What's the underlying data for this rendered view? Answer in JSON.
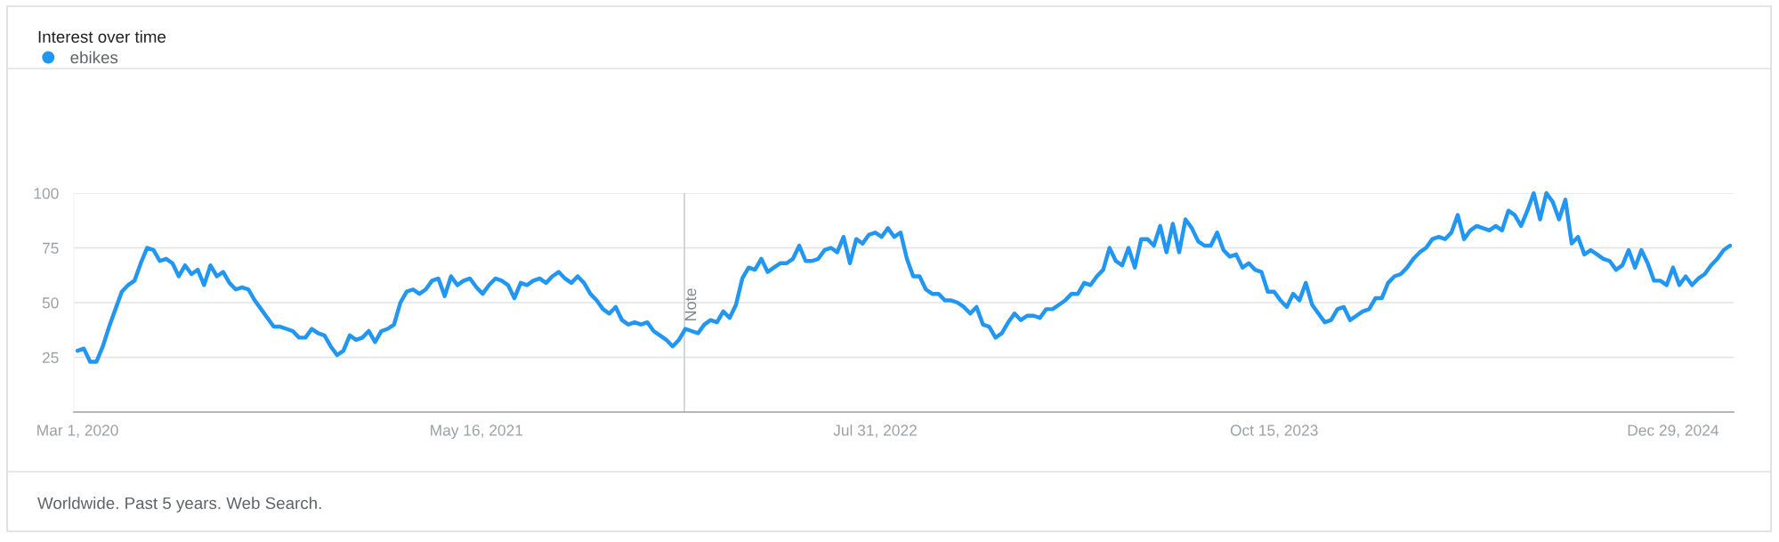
{
  "chart_data": {
    "type": "line",
    "title": "Interest over time",
    "annotations": [
      "Worldwide. Past 5 years. Web Search."
    ],
    "x": [
      "2020-03-01",
      "2020-03-08",
      "2020-03-15",
      "2020-03-22",
      "2020-03-29",
      "2020-04-05",
      "2020-04-12",
      "2020-04-19",
      "2020-04-26",
      "2020-05-03",
      "2020-05-10",
      "2020-05-17",
      "2020-05-24",
      "2020-05-31",
      "2020-06-07",
      "2020-06-14",
      "2020-06-21",
      "2020-06-28",
      "2020-07-05",
      "2020-07-12",
      "2020-07-19",
      "2020-07-26",
      "2020-08-02",
      "2020-08-09",
      "2020-08-16",
      "2020-08-23",
      "2020-08-30",
      "2020-09-06",
      "2020-09-13",
      "2020-09-20",
      "2020-09-27",
      "2020-10-04",
      "2020-10-11",
      "2020-10-18",
      "2020-10-25",
      "2020-11-01",
      "2020-11-08",
      "2020-11-15",
      "2020-11-22",
      "2020-11-29",
      "2020-12-06",
      "2020-12-13",
      "2020-12-20",
      "2020-12-27",
      "2021-01-03",
      "2021-01-10",
      "2021-01-17",
      "2021-01-24",
      "2021-01-31",
      "2021-02-07",
      "2021-02-14",
      "2021-02-21",
      "2021-02-28",
      "2021-03-07",
      "2021-03-14",
      "2021-03-21",
      "2021-03-28",
      "2021-04-04",
      "2021-04-11",
      "2021-04-18",
      "2021-04-25",
      "2021-05-02",
      "2021-05-09",
      "2021-05-16",
      "2021-05-23",
      "2021-05-30",
      "2021-06-06",
      "2021-06-13",
      "2021-06-20",
      "2021-06-27",
      "2021-07-04",
      "2021-07-11",
      "2021-07-18",
      "2021-07-25",
      "2021-08-01",
      "2021-08-08",
      "2021-08-15",
      "2021-08-22",
      "2021-08-29",
      "2021-09-05",
      "2021-09-12",
      "2021-09-19",
      "2021-09-26",
      "2021-10-03",
      "2021-10-10",
      "2021-10-17",
      "2021-10-24",
      "2021-10-31",
      "2021-11-07",
      "2021-11-14",
      "2021-11-21",
      "2021-11-28",
      "2021-12-05",
      "2021-12-12",
      "2021-12-19",
      "2021-12-26",
      "2022-01-02",
      "2022-01-09",
      "2022-01-16",
      "2022-01-23",
      "2022-01-30",
      "2022-02-06",
      "2022-02-13",
      "2022-02-20",
      "2022-02-27",
      "2022-03-06",
      "2022-03-13",
      "2022-03-20",
      "2022-03-27",
      "2022-04-03",
      "2022-04-10",
      "2022-04-17",
      "2022-04-24",
      "2022-05-01",
      "2022-05-08",
      "2022-05-15",
      "2022-05-22",
      "2022-05-29",
      "2022-06-05",
      "2022-06-12",
      "2022-06-19",
      "2022-06-26",
      "2022-07-03",
      "2022-07-10",
      "2022-07-17",
      "2022-07-24",
      "2022-07-31",
      "2022-08-07",
      "2022-08-14",
      "2022-08-21",
      "2022-08-28",
      "2022-09-04",
      "2022-09-11",
      "2022-09-18",
      "2022-09-25",
      "2022-10-02",
      "2022-10-09",
      "2022-10-16",
      "2022-10-23",
      "2022-10-30",
      "2022-11-06",
      "2022-11-13",
      "2022-11-20",
      "2022-11-27",
      "2022-12-04",
      "2022-12-11",
      "2022-12-18",
      "2022-12-25",
      "2023-01-01",
      "2023-01-08",
      "2023-01-15",
      "2023-01-22",
      "2023-01-29",
      "2023-02-05",
      "2023-02-12",
      "2023-02-19",
      "2023-02-26",
      "2023-03-05",
      "2023-03-12",
      "2023-03-19",
      "2023-03-26",
      "2023-04-02",
      "2023-04-09",
      "2023-04-16",
      "2023-04-23",
      "2023-04-30",
      "2023-05-07",
      "2023-05-14",
      "2023-05-21",
      "2023-05-28",
      "2023-06-04",
      "2023-06-11",
      "2023-06-18",
      "2023-06-25",
      "2023-07-02",
      "2023-07-09",
      "2023-07-16",
      "2023-07-23",
      "2023-07-30",
      "2023-08-06",
      "2023-08-13",
      "2023-08-20",
      "2023-08-27",
      "2023-09-03",
      "2023-09-10",
      "2023-09-17",
      "2023-09-24",
      "2023-10-01",
      "2023-10-08",
      "2023-10-15",
      "2023-10-22",
      "2023-10-29",
      "2023-11-05",
      "2023-11-12",
      "2023-11-19",
      "2023-11-26",
      "2023-12-03",
      "2023-12-10",
      "2023-12-17",
      "2023-12-24",
      "2023-12-31",
      "2024-01-07",
      "2024-01-14",
      "2024-01-21",
      "2024-01-28",
      "2024-02-04",
      "2024-02-11",
      "2024-02-18",
      "2024-02-25",
      "2024-03-03",
      "2024-03-10",
      "2024-03-17",
      "2024-03-24",
      "2024-03-31",
      "2024-04-07",
      "2024-04-14",
      "2024-04-21",
      "2024-04-28",
      "2024-05-05",
      "2024-05-12",
      "2024-05-19",
      "2024-05-26",
      "2024-06-02",
      "2024-06-09",
      "2024-06-16",
      "2024-06-23",
      "2024-06-30",
      "2024-07-07",
      "2024-07-14",
      "2024-07-21",
      "2024-07-28",
      "2024-08-04",
      "2024-08-11",
      "2024-08-18",
      "2024-08-25",
      "2024-09-01",
      "2024-09-08",
      "2024-09-15",
      "2024-09-22",
      "2024-09-29",
      "2024-10-06",
      "2024-10-13",
      "2024-10-20",
      "2024-10-27",
      "2024-11-03",
      "2024-11-10",
      "2024-11-17",
      "2024-11-24",
      "2024-12-01",
      "2024-12-08",
      "2024-12-15",
      "2024-12-22",
      "2024-12-29",
      "2025-01-05",
      "2025-01-12",
      "2025-01-19",
      "2025-01-26",
      "2025-02-02",
      "2025-02-09",
      "2025-02-16",
      "2025-02-23",
      "2025-03-02"
    ],
    "series": [
      {
        "name": "ebikes",
        "color": "#2196f3",
        "values": [
          28,
          29,
          23,
          23,
          30,
          39,
          47,
          55,
          58,
          60,
          68,
          75,
          74,
          69,
          70,
          68,
          62,
          67,
          63,
          65,
          58,
          67,
          62,
          64,
          59,
          56,
          57,
          56,
          51,
          47,
          43,
          39,
          39,
          38,
          37,
          34,
          34,
          38,
          36,
          35,
          30,
          26,
          28,
          35,
          33,
          34,
          37,
          32,
          37,
          38,
          40,
          50,
          55,
          56,
          54,
          56,
          60,
          61,
          53,
          62,
          58,
          60,
          61,
          57,
          54,
          58,
          61,
          60,
          58,
          52,
          59,
          58,
          60,
          61,
          59,
          62,
          64,
          61,
          59,
          62,
          59,
          54,
          51,
          47,
          45,
          48,
          42,
          40,
          41,
          40,
          41,
          37,
          35,
          33,
          30,
          33,
          38,
          37,
          36,
          40,
          42,
          41,
          46,
          43,
          49,
          61,
          66,
          65,
          70,
          64,
          66,
          68,
          68,
          70,
          76,
          69,
          69,
          70,
          74,
          75,
          73,
          80,
          68,
          79,
          77,
          81,
          82,
          80,
          84,
          80,
          82,
          70,
          62,
          62,
          56,
          54,
          54,
          51,
          51,
          50,
          48,
          45,
          48,
          40,
          39,
          34,
          36,
          41,
          45,
          42,
          44,
          44,
          43,
          47,
          47,
          49,
          51,
          54,
          54,
          59,
          58,
          62,
          65,
          75,
          69,
          67,
          75,
          66,
          79,
          79,
          76,
          85,
          73,
          86,
          73,
          88,
          84,
          78,
          76,
          76,
          82,
          74,
          71,
          72,
          66,
          68,
          65,
          64,
          55,
          55,
          51,
          48,
          54,
          51,
          59,
          49,
          45,
          41,
          42,
          47,
          48,
          42,
          44,
          46,
          47,
          52,
          52,
          59,
          62,
          63,
          66,
          70,
          73,
          75,
          79,
          80,
          79,
          82,
          90,
          79,
          83,
          85,
          84,
          83,
          85,
          83,
          92,
          90,
          85,
          92,
          100,
          88,
          100,
          96,
          88,
          97,
          77,
          80,
          72,
          74,
          72,
          70,
          69,
          65,
          67,
          74,
          66,
          74,
          68,
          60,
          60,
          58,
          66,
          58,
          62,
          58,
          61,
          63,
          67,
          70,
          74,
          76
        ]
      }
    ],
    "xlim": [
      "2020-02-26",
      "2025-03-06"
    ],
    "xticks": [
      {
        "value": "2020-03-01",
        "label": "Mar 1, 2020"
      },
      {
        "value": "2021-05-16",
        "label": "May 16, 2021"
      },
      {
        "value": "2022-07-31",
        "label": "Jul 31, 2022"
      },
      {
        "value": "2023-10-15",
        "label": "Oct 15, 2023"
      },
      {
        "value": "2024-12-29",
        "label": "Dec 29, 2024"
      }
    ],
    "ylim": [
      0,
      100
    ],
    "yticks": [
      25,
      50,
      75,
      100
    ],
    "ref_lines": [
      {
        "axis": "x",
        "value": "2022-01-01",
        "label": "Note",
        "color": "#cfcfcf"
      }
    ],
    "grid": "y",
    "legend": "top left",
    "marker": "none",
    "line_style": "solid"
  }
}
